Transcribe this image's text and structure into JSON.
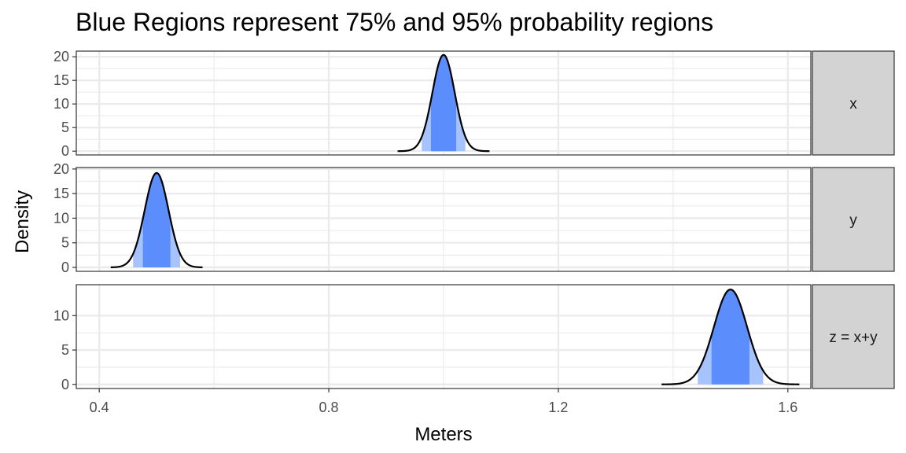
{
  "chart_data": {
    "type": "area",
    "title": "Blue Regions represent 75% and 95% probability regions",
    "xlabel": "Meters",
    "ylabel": "Density",
    "xlim": [
      0.36,
      1.64
    ],
    "x_ticks": [
      0.4,
      0.8,
      1.2,
      1.6
    ],
    "x_tick_labels": [
      "0.4",
      "0.8",
      "1.2",
      "1.6"
    ],
    "grid": true,
    "colors": {
      "inner_region": "#5b8efc",
      "outer_region": "#a6c3fd",
      "curve": "#000000",
      "strip_bg": "#d3d3d3",
      "grid": "#ebebeb"
    },
    "panels": [
      {
        "strip": "x",
        "mean": 1.0,
        "sd": 0.0195,
        "x_range": [
          0.92,
          1.08
        ],
        "peak": 20.4,
        "ylim": [
          -0.8,
          21.2
        ],
        "y_ticks": [
          0,
          5,
          10,
          15,
          20
        ],
        "y_tick_labels": [
          "0",
          "5",
          "10",
          "15",
          "20"
        ],
        "interval_75": [
          0.978,
          1.022
        ],
        "interval_95": [
          0.962,
          1.038
        ]
      },
      {
        "strip": "y",
        "mean": 0.5,
        "sd": 0.0208,
        "x_range": [
          0.42,
          0.58
        ],
        "peak": 19.2,
        "ylim": [
          -0.8,
          20.3
        ],
        "y_ticks": [
          0,
          5,
          10,
          15,
          20
        ],
        "y_tick_labels": [
          "0",
          "5",
          "10",
          "15",
          "20"
        ],
        "interval_75": [
          0.476,
          0.524
        ],
        "interval_95": [
          0.459,
          0.541
        ]
      },
      {
        "strip": "z = x+y",
        "mean": 1.5,
        "sd": 0.0289,
        "x_range": [
          1.38,
          1.62
        ],
        "peak": 13.8,
        "ylim": [
          -0.6,
          14.5
        ],
        "y_ticks": [
          0,
          5,
          10
        ],
        "y_tick_labels": [
          "0",
          "5",
          "10"
        ],
        "interval_75": [
          1.467,
          1.533
        ],
        "interval_95": [
          1.443,
          1.557
        ]
      }
    ]
  }
}
